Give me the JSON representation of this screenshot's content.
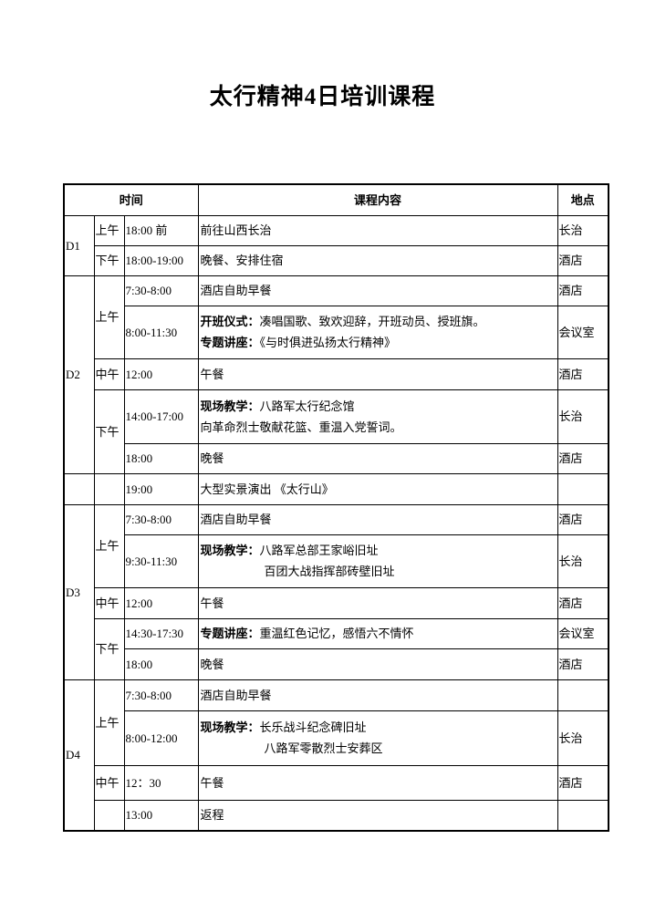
{
  "title": "太行精神4日培训课程",
  "header": {
    "time": "时间",
    "content": "课程内容",
    "place": "地点"
  },
  "days": [
    {
      "day": "D1",
      "periods": [
        {
          "period": "上午",
          "slots": [
            {
              "time": "18:00 前",
              "content": [
                {
                  "text": "前往山西长治"
                }
              ],
              "place": "长治"
            }
          ]
        },
        {
          "period": "下午",
          "slots": [
            {
              "time": "18:00-19:00",
              "content": [
                {
                  "text": "晚餐、安排住宿"
                }
              ],
              "place": "酒店"
            }
          ]
        }
      ]
    },
    {
      "day": "D2",
      "periods": [
        {
          "period": "上午",
          "slots": [
            {
              "time": "7:30-8:00",
              "content": [
                {
                  "text": "酒店自助早餐"
                }
              ],
              "place": "酒店"
            },
            {
              "time": "8:00-11:30",
              "content": [
                {
                  "label": "开班仪式：",
                  "text": "凑唱国歌、致欢迎辞，开班动员、授班旗。"
                },
                {
                  "label": "专题讲座：",
                  "text": "《与时俱进弘扬太行精神》"
                }
              ],
              "place": "会议室"
            }
          ]
        },
        {
          "period": "中午",
          "slots": [
            {
              "time": "12:00",
              "content": [
                {
                  "text": "午餐"
                }
              ],
              "place": "酒店"
            }
          ]
        },
        {
          "period": "下午",
          "slots": [
            {
              "time": "14:00-17:00",
              "content": [
                {
                  "label": "现场教学：",
                  "text": "八路军太行纪念馆"
                },
                {
                  "text": "向革命烈士敬献花篮、重温入党誓词。"
                }
              ],
              "place": "长治"
            },
            {
              "time": "18:00",
              "content": [
                {
                  "text": "晚餐"
                }
              ],
              "place": "酒店"
            }
          ]
        }
      ]
    },
    {
      "periods": [
        {
          "slots": [
            {
              "time": "19:00",
              "content": [
                {
                  "text": "大型实景演出 《太行山》"
                }
              ]
            }
          ]
        }
      ]
    },
    {
      "day": "D3",
      "periods": [
        {
          "period": "上午",
          "slots": [
            {
              "time": "7:30-8:00",
              "content": [
                {
                  "text": "酒店自助早餐"
                }
              ],
              "place": "酒店"
            },
            {
              "time": "9:30-11:30",
              "content": [
                {
                  "label": "现场教学：",
                  "text": "八路军总部王家峪旧址"
                },
                {
                  "text": "百团大战指挥部砖壁旧址"
                }
              ],
              "place": "长治"
            }
          ]
        },
        {
          "period": "中午",
          "slots": [
            {
              "time": "12:00",
              "content": [
                {
                  "text": "午餐"
                }
              ],
              "place": "酒店"
            }
          ]
        },
        {
          "period": "下午",
          "slots": [
            {
              "time": "14:30-17:30",
              "content": [
                {
                  "label": "专题讲座：",
                  "text": "重温红色记忆，感悟六不情怀"
                }
              ],
              "place": "会议室"
            },
            {
              "time": "18:00",
              "content": [
                {
                  "text": "晚餐"
                }
              ],
              "place": "酒店"
            }
          ]
        }
      ]
    },
    {
      "day": "D4",
      "periods": [
        {
          "period": "上午",
          "slots": [
            {
              "time": "7:30-8:00",
              "content": [
                {
                  "text": "酒店自助早餐"
                }
              ]
            },
            {
              "time": "8:00-12:00",
              "content": [
                {
                  "label": "现场教学：",
                  "text": "长乐战斗纪念碑旧址"
                },
                {
                  "text": "八路军零散烈士安葬区"
                }
              ],
              "place": "长治"
            }
          ]
        },
        {
          "period": "中午",
          "slots": [
            {
              "time": "12：30",
              "content": [
                {
                  "text": "午餐"
                }
              ],
              "place": "酒店"
            }
          ]
        },
        {
          "slots": [
            {
              "time": "13:00",
              "content": [
                {
                  "text": "返程"
                }
              ]
            }
          ]
        }
      ]
    }
  ]
}
